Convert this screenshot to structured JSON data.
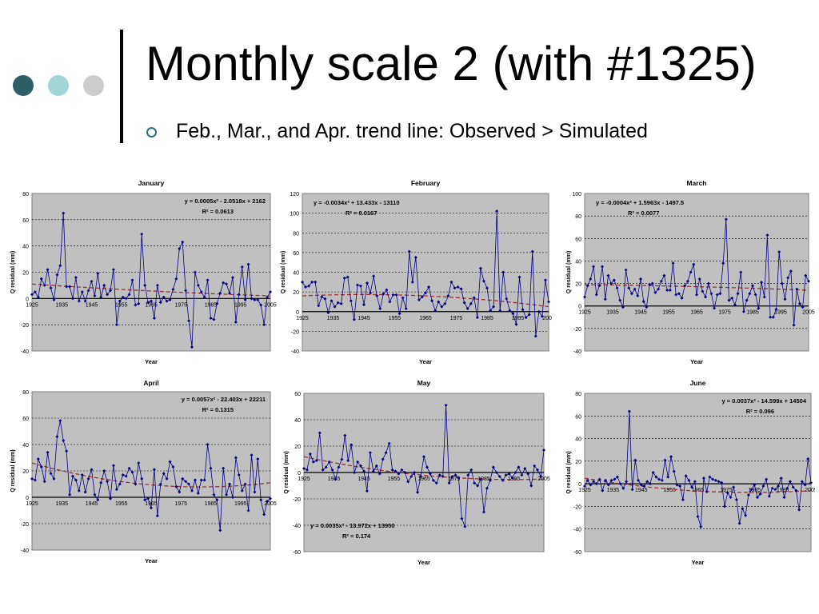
{
  "slide": {
    "title": "Monthly scale 2 (with #1325)",
    "bullet": "Feb., Mar., and Apr. trend line: Observed > Simulated",
    "dot_colors": [
      "#2f5f66",
      "#a3d5d6",
      "#cccccc"
    ]
  },
  "colors": {
    "plot_bg": "#c0c0c0",
    "series": "#000080",
    "trend": "#993333"
  },
  "chart_data": [
    {
      "type": "line",
      "title": "January",
      "xlabel": "Year",
      "ylabel": "Q residual (mm)",
      "xlim": [
        1925,
        2005
      ],
      "ylim": [
        -40,
        80
      ],
      "yticks": [
        -40,
        -20,
        0,
        20,
        40,
        60,
        80
      ],
      "xticks": [
        "1925",
        "1935",
        "1945",
        "1955",
        "1965",
        "1975",
        "1985",
        "1995",
        "2005"
      ],
      "equation": "y = 0.0005x² - 2.0518x + 2162",
      "r2": "R² = 0.0613",
      "annotation_pos": "top-right",
      "trend": {
        "a": 0.0005,
        "b": -2.0518,
        "c": 2162,
        "x0": 1925,
        "y0": 11,
        "x1": 2005,
        "y1": 2
      },
      "values": [
        3,
        5,
        1,
        15,
        10,
        22,
        8,
        -1,
        18,
        25,
        65,
        9,
        9,
        0,
        16,
        -2,
        5,
        -2,
        6,
        13,
        2,
        19,
        1,
        10,
        3,
        6,
        22,
        -20,
        -2,
        1,
        0,
        3,
        14,
        -5,
        -4,
        49,
        10,
        -3,
        -2,
        -15,
        10,
        -3,
        1,
        -2,
        -1,
        7,
        15,
        38,
        43,
        6,
        -17,
        -37,
        20,
        10,
        5,
        1,
        14,
        -15,
        -16,
        -4,
        4,
        12,
        11,
        4,
        16,
        -18,
        3,
        24,
        -1,
        26,
        0,
        -1,
        -1,
        -5,
        -20,
        1,
        5
      ],
      "grid": "horizontal dashed",
      "legend": "none"
    },
    {
      "type": "line",
      "title": "February",
      "xlabel": "Year",
      "ylabel": "Q residual (mm)",
      "xlim": [
        1925,
        2005
      ],
      "ylim": [
        -40,
        120
      ],
      "yticks": [
        -40,
        -20,
        0,
        20,
        40,
        60,
        80,
        100,
        120
      ],
      "xticks": [
        "1925",
        "1935",
        "1945",
        "1955",
        "1965",
        "1975",
        "1985",
        "1995",
        "2005"
      ],
      "equation": "y = -0.0034x² + 13.433x - 13110",
      "r2": "R² = 0.0167",
      "annotation_pos": "top-left",
      "trend": {
        "a": -0.0034,
        "b": 13.433,
        "c": -13110,
        "x0": 1925,
        "y0": 16,
        "x1": 2005,
        "y1": 5
      },
      "values": [
        30,
        25,
        26,
        30,
        30,
        6,
        15,
        13,
        -1,
        11,
        5,
        9,
        8,
        34,
        35,
        11,
        -8,
        27,
        26,
        7,
        29,
        19,
        36,
        16,
        3,
        18,
        22,
        10,
        17,
        17,
        -2,
        14,
        3,
        61,
        30,
        55,
        12,
        15,
        19,
        25,
        11,
        1,
        10,
        5,
        8,
        16,
        30,
        24,
        25,
        23,
        9,
        3,
        8,
        14,
        -6,
        44,
        31,
        24,
        1,
        5,
        102,
        1,
        40,
        13,
        1,
        -2,
        -13,
        35,
        2,
        -6,
        -3,
        61,
        -25,
        0,
        -5,
        32,
        10
      ],
      "grid": "horizontal dashed",
      "legend": "none"
    },
    {
      "type": "line",
      "title": "March",
      "xlabel": "Year",
      "ylabel": "Q residual (mm)",
      "xlim": [
        1925,
        2005
      ],
      "ylim": [
        -40,
        100
      ],
      "yticks": [
        -40,
        -20,
        0,
        20,
        40,
        60,
        80,
        100
      ],
      "xticks": [
        "1925",
        "1935",
        "1945",
        "1955",
        "1965",
        "1975",
        "1985",
        "1995",
        "2005"
      ],
      "equation": "y = -0.0004x² + 1.5963x - 1497.5",
      "r2": "R² = 0.0077",
      "annotation_pos": "top-left",
      "trend": {
        "a": -0.0004,
        "b": 1.5963,
        "c": -1497.5,
        "x0": 1925,
        "y0": 19,
        "x1": 2005,
        "y1": 14
      },
      "values": [
        8,
        18,
        24,
        35,
        10,
        18,
        35,
        6,
        27,
        20,
        23,
        16,
        5,
        -1,
        32,
        16,
        11,
        15,
        9,
        24,
        4,
        -1,
        19,
        20,
        12,
        15,
        22,
        27,
        14,
        14,
        38,
        10,
        11,
        7,
        18,
        22,
        30,
        37,
        10,
        24,
        13,
        8,
        20,
        11,
        -2,
        10,
        11,
        38,
        77,
        5,
        7,
        1,
        11,
        30,
        -5,
        5,
        11,
        18,
        10,
        -2,
        21,
        8,
        63,
        -10,
        -10,
        -3,
        48,
        20,
        6,
        25,
        31,
        -17,
        15,
        2,
        -1,
        27,
        22
      ],
      "grid": "horizontal dashed",
      "legend": "none"
    },
    {
      "type": "line",
      "title": "April",
      "xlabel": "Year",
      "ylabel": "Q residual (mm)",
      "xlim": [
        1925,
        2005
      ],
      "ylim": [
        -40,
        80
      ],
      "yticks": [
        -40,
        -20,
        0,
        20,
        40,
        60,
        80
      ],
      "xticks": [
        "1925",
        "1935",
        "1945",
        "1955",
        "1965",
        "1975",
        "1985",
        "1995",
        "2005"
      ],
      "equation": "y = 0.0057x² - 22.403x + 22211",
      "r2": "R² = 0.1315",
      "annotation_pos": "top-right",
      "trend": {
        "a": 0.0057,
        "b": -22.403,
        "c": 22211,
        "x0": 1925,
        "y0": 26,
        "x1": 2005,
        "y1": 11
      },
      "values": [
        14,
        13,
        29,
        23,
        12,
        34,
        18,
        14,
        46,
        58,
        43,
        35,
        2,
        16,
        13,
        5,
        17,
        4,
        14,
        21,
        2,
        -2,
        11,
        20,
        12,
        -1,
        24,
        6,
        10,
        17,
        16,
        22,
        19,
        10,
        26,
        14,
        -2,
        -1,
        -8,
        21,
        -14,
        10,
        18,
        14,
        27,
        23,
        8,
        4,
        14,
        12,
        10,
        5,
        13,
        3,
        13,
        13,
        40,
        22,
        2,
        -2,
        -25,
        22,
        2,
        10,
        0,
        30,
        17,
        5,
        10,
        -10,
        32,
        4,
        29,
        -2,
        -13,
        -3,
        -1
      ],
      "grid": "horizontal dashed",
      "legend": "none"
    },
    {
      "type": "line",
      "title": "May",
      "xlabel": "Year",
      "ylabel": "Q residual (mm)",
      "xlim": [
        1925,
        2005
      ],
      "ylim": [
        -60,
        60
      ],
      "yticks": [
        -60,
        -40,
        -20,
        0,
        20,
        40,
        60
      ],
      "xticks": [
        "1925",
        "1935",
        "1945",
        "1955",
        "1965",
        "1975",
        "1985",
        "1995",
        "2005"
      ],
      "equation": "y = 0.0035x² - 13.972x + 13950",
      "r2": "R² = 0.174",
      "annotation_pos": "bottom-left",
      "trend": {
        "a": 0.0035,
        "b": -13.972,
        "c": 13950,
        "x0": 1925,
        "y0": 12,
        "x1": 2005,
        "y1": -5
      },
      "values": [
        3,
        2,
        14,
        8,
        9,
        30,
        2,
        4,
        8,
        2,
        -5,
        4,
        10,
        28,
        9,
        21,
        0,
        8,
        5,
        1,
        -14,
        15,
        1,
        5,
        -1,
        10,
        15,
        22,
        2,
        1,
        -1,
        2,
        0,
        -7,
        -3,
        0,
        -15,
        -3,
        12,
        4,
        -1,
        -6,
        -8,
        -2,
        -3,
        51,
        -8,
        -3,
        -2,
        -4,
        -35,
        -41,
        -2,
        2,
        -8,
        -10,
        -5,
        -30,
        -12,
        -6,
        4,
        0,
        -3,
        -6,
        -2,
        -1,
        -4,
        0,
        4,
        -2,
        3,
        -1,
        -10,
        5,
        2,
        -3,
        17
      ],
      "grid": "horizontal dashed",
      "legend": "none"
    },
    {
      "type": "line",
      "title": "June",
      "xlabel": "Year",
      "ylabel": "Q residual (mm)",
      "xlim": [
        1925,
        2005
      ],
      "ylim": [
        -60,
        80
      ],
      "yticks": [
        -60,
        -40,
        -20,
        0,
        20,
        40,
        60,
        80
      ],
      "xticks": [
        "1925",
        "1935",
        "1945",
        "1955",
        "1965",
        "1975",
        "1985",
        "1995",
        "2005"
      ],
      "equation": "y = 0.0037x² - 14.599x + 14504",
      "r2": "R² = 0.096",
      "annotation_pos": "top-right",
      "trend": {
        "a": 0.0037,
        "b": -14.599,
        "c": 14504,
        "x0": 1925,
        "y0": 5,
        "x1": 2005,
        "y1": -6
      },
      "values": [
        -2,
        3,
        -1,
        2,
        0,
        4,
        -6,
        3,
        -1,
        3,
        4,
        6,
        0,
        -4,
        2,
        64,
        -5,
        21,
        3,
        -1,
        -2,
        2,
        0,
        10,
        6,
        4,
        3,
        21,
        6,
        24,
        11,
        -1,
        -2,
        -14,
        7,
        3,
        -3,
        2,
        -29,
        -38,
        5,
        -7,
        6,
        4,
        3,
        2,
        1,
        -20,
        -8,
        -12,
        -3,
        -14,
        -35,
        -22,
        -28,
        -10,
        -5,
        -1,
        -12,
        -9,
        -2,
        4,
        -11,
        -4,
        -5,
        -2,
        5,
        -12,
        -4,
        2,
        -3,
        -6,
        -23,
        2,
        -1,
        22,
        1
      ],
      "grid": "horizontal dashed",
      "legend": "none"
    }
  ]
}
